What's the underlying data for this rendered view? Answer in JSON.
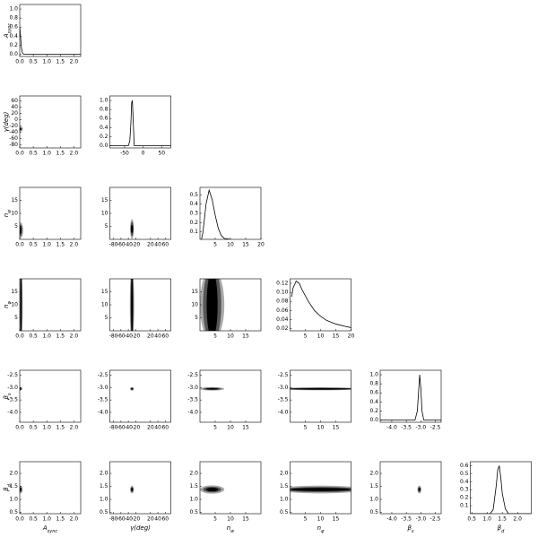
{
  "chart_data": [
    {
      "type": "line",
      "ylabel": {
        "main": "A",
        "sub": "sync"
      },
      "xlim": [
        0,
        2.25
      ],
      "ylim": [
        -0.05,
        1.1
      ],
      "xticks": [
        {
          "value": 0,
          "label": "0.0"
        },
        {
          "value": 0.5,
          "label": "0.5"
        },
        {
          "value": 1,
          "label": "1.0"
        },
        {
          "value": 1.5,
          "label": "1.5"
        },
        {
          "value": 2,
          "label": "2.0"
        }
      ],
      "yticks": [
        {
          "value": 0,
          "label": "0.0"
        },
        0.2,
        0.4,
        0.6,
        0.8,
        {
          "value": 1,
          "label": "1.0"
        }
      ],
      "x": [
        0,
        0.03,
        0.06,
        0.1,
        0.15,
        2.25
      ],
      "values": [
        0.6,
        0.4,
        0.15,
        0.03,
        0,
        0
      ],
      "color": "#000000"
    },
    {
      "type": "contour",
      "ylabel": {
        "main": "γ(deg)"
      },
      "xlim": [
        0,
        2.25
      ],
      "ylim": [
        -90,
        75
      ],
      "xticks": [
        {
          "value": 0,
          "label": "0.0"
        },
        {
          "value": 0.5,
          "label": "0.5"
        },
        {
          "value": 1,
          "label": "1.0"
        },
        {
          "value": 1.5,
          "label": "1.5"
        },
        {
          "value": 2,
          "label": "2.0"
        }
      ],
      "yticks": [
        -80,
        -60,
        -40,
        -20,
        0,
        20,
        40,
        60
      ],
      "colors": [
        "#aaaaaa",
        "#555555",
        "#000000"
      ],
      "regions": [
        {
          "cx": 0.02,
          "cy": -30,
          "rx": 0.1,
          "ry": 8
        },
        {
          "cx": 0.02,
          "cy": -30,
          "rx": 0.06,
          "ry": 5
        },
        {
          "cx": 0.02,
          "cy": -30,
          "rx": 0.03,
          "ry": 3
        }
      ]
    },
    {
      "type": "line",
      "xlim": [
        -90,
        75
      ],
      "ylim": [
        -0.05,
        1.1
      ],
      "xticks": [
        -50,
        0,
        50
      ],
      "yticks": [
        {
          "value": 0,
          "label": "0.0"
        },
        0.2,
        0.4,
        0.6,
        0.8,
        {
          "value": 1,
          "label": "1.0"
        }
      ],
      "x": [
        -90,
        -40,
        -36,
        -33,
        -31,
        -29,
        -27,
        -24,
        75
      ],
      "values": [
        0,
        0,
        0.1,
        0.5,
        0.95,
        1,
        0.6,
        0,
        0
      ],
      "color": "#000000"
    },
    {
      "type": "contour",
      "ylabel": {
        "main": "n",
        "sub": "w"
      },
      "xlim": [
        0,
        2.25
      ],
      "ylim": [
        0,
        20
      ],
      "xticks": [
        {
          "value": 0,
          "label": "0.0"
        },
        {
          "value": 0.5,
          "label": "0.5"
        },
        {
          "value": 1,
          "label": "1.0"
        },
        {
          "value": 1.5,
          "label": "1.5"
        },
        {
          "value": 2,
          "label": "2.0"
        }
      ],
      "yticks": [
        5,
        10,
        15
      ],
      "colors": [
        "#aaaaaa",
        "#555555",
        "#000000"
      ],
      "regions": [
        {
          "cx": 0.03,
          "cy": 3.5,
          "rx": 0.1,
          "ry": 3
        },
        {
          "cx": 0.03,
          "cy": 3.5,
          "rx": 0.06,
          "ry": 2.2
        },
        {
          "cx": 0.03,
          "cy": 3.5,
          "rx": 0.03,
          "ry": 1.4
        }
      ]
    },
    {
      "type": "contour",
      "xlim": [
        -90,
        75
      ],
      "ylim": [
        0,
        20
      ],
      "xticks": [
        -80,
        -60,
        -40,
        -20,
        20,
        40,
        60
      ],
      "yticks": [
        5,
        10,
        15
      ],
      "colors": [
        "#aaaaaa",
        "#555555",
        "#000000"
      ],
      "regions": [
        {
          "cx": -30,
          "cy": 4,
          "rx": 5,
          "ry": 3.8
        },
        {
          "cx": -30,
          "cy": 4,
          "rx": 4,
          "ry": 2.8
        },
        {
          "cx": -30,
          "cy": 4,
          "rx": 3,
          "ry": 1.6
        }
      ]
    },
    {
      "type": "line",
      "xlim": [
        0,
        20
      ],
      "ylim": [
        0.02,
        0.58
      ],
      "xticks": [
        5,
        10,
        15,
        20
      ],
      "yticks": [
        0.1,
        0.2,
        0.3,
        0.4,
        0.5
      ],
      "x": [
        0.5,
        1,
        2,
        3,
        4,
        5,
        6,
        7,
        8,
        10
      ],
      "values": [
        0.02,
        0.1,
        0.4,
        0.55,
        0.45,
        0.28,
        0.14,
        0.06,
        0.03,
        0.02
      ],
      "color": "#000000"
    },
    {
      "type": "contour",
      "ylabel": {
        "main": "n",
        "sub": "φ"
      },
      "xlim": [
        0,
        2.25
      ],
      "ylim": [
        0,
        20
      ],
      "xticks": [
        {
          "value": 0,
          "label": "0.0"
        },
        {
          "value": 0.5,
          "label": "0.5"
        },
        {
          "value": 1,
          "label": "1.0"
        },
        {
          "value": 1.5,
          "label": "1.5"
        },
        {
          "value": 2,
          "label": "2.0"
        }
      ],
      "yticks": [
        5,
        10,
        15
      ],
      "colors": [
        "#aaaaaa",
        "#555555",
        "#000000"
      ],
      "regions": [
        {
          "cx": 0.05,
          "cy": 10,
          "rx": 0.06,
          "ry": 14
        },
        {
          "cx": 0.05,
          "cy": 10,
          "rx": 0.04,
          "ry": 14
        },
        {
          "cx": 0.05,
          "cy": 10,
          "rx": 0.02,
          "ry": 13
        }
      ]
    },
    {
      "type": "contour",
      "xlim": [
        -90,
        75
      ],
      "ylim": [
        0,
        20
      ],
      "xticks": [
        -80,
        -60,
        -40,
        -20,
        20,
        40,
        60
      ],
      "yticks": [
        5,
        10,
        15
      ],
      "colors": [
        "#aaaaaa",
        "#555555",
        "#000000"
      ],
      "regions": [
        {
          "cx": -30,
          "cy": 10,
          "rx": 6,
          "ry": 14
        },
        {
          "cx": -30,
          "cy": 10,
          "rx": 4,
          "ry": 14
        },
        {
          "cx": -30,
          "cy": 10,
          "rx": 2.5,
          "ry": 12
        }
      ]
    },
    {
      "type": "contour",
      "xlim": [
        0,
        20
      ],
      "ylim": [
        0,
        20
      ],
      "xticks": [
        5,
        10,
        15
      ],
      "yticks": [
        5,
        10,
        15
      ],
      "colors": [
        "#aaaaaa",
        "#555555",
        "#000000"
      ],
      "regions": [
        {
          "cx": 4,
          "cy": 10,
          "rx": 4,
          "ry": 14
        },
        {
          "cx": 4,
          "cy": 10,
          "rx": 3,
          "ry": 14
        },
        {
          "cx": 4,
          "cy": 10,
          "rx": 1.8,
          "ry": 13
        }
      ]
    },
    {
      "type": "line",
      "xlim": [
        0,
        20
      ],
      "ylim": [
        0.015,
        0.13
      ],
      "xticks": [
        5,
        10,
        15,
        20
      ],
      "yticks": [
        0.02,
        0.04,
        0.06,
        0.08,
        {
          "value": 0.1,
          "label": "0.10"
        },
        0.12
      ],
      "x": [
        0.5,
        1,
        2,
        3,
        4,
        6,
        8,
        10,
        12,
        15,
        18,
        20
      ],
      "values": [
        0.09,
        0.11,
        0.125,
        0.12,
        0.105,
        0.08,
        0.06,
        0.047,
        0.038,
        0.03,
        0.025,
        0.022
      ],
      "color": "#000000"
    },
    {
      "type": "contour",
      "ylabel": {
        "main": "β",
        "sub": "s"
      },
      "xlim": [
        0,
        2.25
      ],
      "ylim": [
        -4.4,
        -2.3
      ],
      "xticks": [
        {
          "value": 0,
          "label": "0.0"
        },
        {
          "value": 0.5,
          "label": "0.5"
        },
        {
          "value": 1,
          "label": "1.0"
        },
        {
          "value": 1.5,
          "label": "1.5"
        },
        {
          "value": 2,
          "label": "2.0"
        }
      ],
      "yticks": [
        {
          "value": -4,
          "label": "-4.0"
        },
        {
          "value": -3.5,
          "label": "-3.5"
        },
        {
          "value": -3,
          "label": "-3.0"
        },
        {
          "value": -2.5,
          "label": "-2.5"
        }
      ],
      "colors": [
        "#aaaaaa",
        "#555555",
        "#000000"
      ],
      "regions": [
        {
          "cx": 0.02,
          "cy": -3.05,
          "rx": 0.08,
          "ry": 0.07
        },
        {
          "cx": 0.02,
          "cy": -3.05,
          "rx": 0.05,
          "ry": 0.05
        },
        {
          "cx": 0.02,
          "cy": -3.05,
          "rx": 0.03,
          "ry": 0.03
        }
      ]
    },
    {
      "type": "contour",
      "xlim": [
        -90,
        75
      ],
      "ylim": [
        -4.4,
        -2.3
      ],
      "xticks": [
        -80,
        -60,
        -40,
        -20,
        20,
        40,
        60
      ],
      "yticks": [
        {
          "value": -4,
          "label": "-4.0"
        },
        {
          "value": -3.5,
          "label": "-3.5"
        },
        {
          "value": -3,
          "label": "-3.0"
        },
        {
          "value": -2.5,
          "label": "-2.5"
        }
      ],
      "colors": [
        "#aaaaaa",
        "#555555",
        "#000000"
      ],
      "regions": [
        {
          "cx": -30,
          "cy": -3.05,
          "rx": 5,
          "ry": 0.07
        },
        {
          "cx": -30,
          "cy": -3.05,
          "rx": 4,
          "ry": 0.05
        },
        {
          "cx": -30,
          "cy": -3.05,
          "rx": 2.5,
          "ry": 0.03
        }
      ]
    },
    {
      "type": "contour",
      "xlim": [
        0,
        20
      ],
      "ylim": [
        -4.4,
        -2.3
      ],
      "xticks": [
        5,
        10,
        15
      ],
      "yticks": [
        {
          "value": -4,
          "label": "-4.0"
        },
        {
          "value": -3.5,
          "label": "-3.5"
        },
        {
          "value": -3,
          "label": "-3.0"
        },
        {
          "value": -2.5,
          "label": "-2.5"
        }
      ],
      "colors": [
        "#aaaaaa",
        "#555555",
        "#000000"
      ],
      "regions": [
        {
          "cx": 4,
          "cy": -3.05,
          "rx": 4,
          "ry": 0.07
        },
        {
          "cx": 4,
          "cy": -3.05,
          "rx": 3,
          "ry": 0.05
        },
        {
          "cx": 4,
          "cy": -3.05,
          "rx": 2,
          "ry": 0.03
        }
      ]
    },
    {
      "type": "contour",
      "xlim": [
        0,
        20
      ],
      "ylim": [
        -4.4,
        -2.3
      ],
      "xticks": [
        5,
        10,
        15
      ],
      "yticks": [
        {
          "value": -4,
          "label": "-4.0"
        },
        {
          "value": -3.5,
          "label": "-3.5"
        },
        {
          "value": -3,
          "label": "-3.0"
        },
        {
          "value": -2.5,
          "label": "-2.5"
        }
      ],
      "colors": [
        "#aaaaaa",
        "#555555",
        "#000000"
      ],
      "regions": [
        {
          "cx": 10,
          "cy": -3.05,
          "rx": 14,
          "ry": 0.06
        },
        {
          "cx": 10,
          "cy": -3.05,
          "rx": 12,
          "ry": 0.045
        },
        {
          "cx": 10,
          "cy": -3.05,
          "rx": 10,
          "ry": 0.03
        }
      ]
    },
    {
      "type": "line",
      "xlim": [
        -4.4,
        -2.3
      ],
      "ylim": [
        -0.05,
        1.1
      ],
      "xticks": [
        {
          "value": -4,
          "label": "-4.0"
        },
        {
          "value": -3.5,
          "label": "-3.5"
        },
        {
          "value": -3,
          "label": "-3.0"
        },
        {
          "value": -2.5,
          "label": "-2.5"
        }
      ],
      "yticks": [
        {
          "value": 0,
          "label": "0.0"
        },
        0.2,
        0.4,
        0.6,
        0.8,
        {
          "value": 1,
          "label": "1.0"
        }
      ],
      "x": [
        -4.4,
        -3.2,
        -3.12,
        -3.07,
        -3.04,
        -3,
        -2.96,
        -2.9,
        -2.3
      ],
      "values": [
        0,
        0,
        0.2,
        0.7,
        1,
        0.7,
        0.2,
        0,
        0
      ],
      "color": "#000000"
    },
    {
      "type": "contour",
      "xlabel": {
        "main": "A",
        "sub": "sync"
      },
      "ylabel": {
        "main": "β",
        "sub": "d"
      },
      "xlim": [
        0,
        2.25
      ],
      "ylim": [
        0.45,
        2.45
      ],
      "xticks": [
        {
          "value": 0,
          "label": "0.0"
        },
        {
          "value": 0.5,
          "label": "0.5"
        },
        {
          "value": 1,
          "label": "1.0"
        },
        {
          "value": 1.5,
          "label": "1.5"
        },
        {
          "value": 2,
          "label": "2.0"
        }
      ],
      "yticks": [
        0.5,
        {
          "value": 1,
          "label": "1.0"
        },
        1.5,
        {
          "value": 2,
          "label": "2.0"
        }
      ],
      "colors": [
        "#aaaaaa",
        "#555555",
        "#000000"
      ],
      "regions": [
        {
          "cx": 0.03,
          "cy": 1.38,
          "rx": 0.08,
          "ry": 0.15
        },
        {
          "cx": 0.03,
          "cy": 1.38,
          "rx": 0.05,
          "ry": 0.1
        },
        {
          "cx": 0.03,
          "cy": 1.38,
          "rx": 0.03,
          "ry": 0.06
        }
      ]
    },
    {
      "type": "contour",
      "xlabel": {
        "main": "γ(deg)"
      },
      "xlim": [
        -90,
        75
      ],
      "ylim": [
        0.45,
        2.45
      ],
      "xticks": [
        -80,
        -60,
        -40,
        -20,
        20,
        40,
        60
      ],
      "yticks": [
        0.5,
        {
          "value": 1,
          "label": "1.0"
        },
        1.5,
        {
          "value": 2,
          "label": "2.0"
        }
      ],
      "colors": [
        "#aaaaaa",
        "#555555",
        "#000000"
      ],
      "regions": [
        {
          "cx": -30,
          "cy": 1.38,
          "rx": 5,
          "ry": 0.15
        },
        {
          "cx": -30,
          "cy": 1.38,
          "rx": 4,
          "ry": 0.1
        },
        {
          "cx": -30,
          "cy": 1.38,
          "rx": 2.5,
          "ry": 0.06
        }
      ]
    },
    {
      "type": "contour",
      "xlabel": {
        "main": "n",
        "sub": "w"
      },
      "xlim": [
        0,
        20
      ],
      "ylim": [
        0.45,
        2.45
      ],
      "xticks": [
        5,
        10,
        15
      ],
      "yticks": [
        0.5,
        {
          "value": 1,
          "label": "1.0"
        },
        1.5,
        {
          "value": 2,
          "label": "2.0"
        }
      ],
      "colors": [
        "#aaaaaa",
        "#555555",
        "#000000"
      ],
      "regions": [
        {
          "cx": 4,
          "cy": 1.38,
          "rx": 4,
          "ry": 0.16
        },
        {
          "cx": 4,
          "cy": 1.38,
          "rx": 3,
          "ry": 0.11
        },
        {
          "cx": 4,
          "cy": 1.38,
          "rx": 2,
          "ry": 0.07
        }
      ]
    },
    {
      "type": "contour",
      "xlabel": {
        "main": "n",
        "sub": "φ"
      },
      "xlim": [
        0,
        20
      ],
      "ylim": [
        0.45,
        2.45
      ],
      "xticks": [
        5,
        10,
        15
      ],
      "yticks": [
        0.5,
        {
          "value": 1,
          "label": "1.0"
        },
        1.5,
        {
          "value": 2,
          "label": "2.0"
        }
      ],
      "colors": [
        "#aaaaaa",
        "#555555",
        "#000000"
      ],
      "regions": [
        {
          "cx": 10,
          "cy": 1.38,
          "rx": 14,
          "ry": 0.15
        },
        {
          "cx": 10,
          "cy": 1.38,
          "rx": 12,
          "ry": 0.1
        },
        {
          "cx": 10,
          "cy": 1.38,
          "rx": 10,
          "ry": 0.06
        }
      ]
    },
    {
      "type": "contour",
      "xlabel": {
        "main": "β",
        "sub": "s"
      },
      "xlim": [
        -4.4,
        -2.3
      ],
      "ylim": [
        0.45,
        2.45
      ],
      "xticks": [
        {
          "value": -4,
          "label": "-4.0"
        },
        {
          "value": -3.5,
          "label": "-3.5"
        },
        {
          "value": -3,
          "label": "-3.0"
        },
        {
          "value": -2.5,
          "label": "-2.5"
        }
      ],
      "yticks": [
        0.5,
        {
          "value": 1,
          "label": "1.0"
        },
        1.5,
        {
          "value": 2,
          "label": "2.0"
        }
      ],
      "colors": [
        "#aaaaaa",
        "#555555",
        "#000000"
      ],
      "regions": [
        {
          "cx": -3.05,
          "cy": 1.38,
          "rx": 0.07,
          "ry": 0.15
        },
        {
          "cx": -3.05,
          "cy": 1.38,
          "rx": 0.05,
          "ry": 0.1
        },
        {
          "cx": -3.05,
          "cy": 1.38,
          "rx": 0.03,
          "ry": 0.06
        }
      ]
    },
    {
      "type": "line",
      "xlabel": {
        "main": "β",
        "sub": "d"
      },
      "xlim": [
        0.45,
        2.45
      ],
      "ylim": [
        0,
        0.65
      ],
      "xticks": [
        0.5,
        {
          "value": 1,
          "label": "1.0"
        },
        1.5,
        {
          "value": 2,
          "label": "2.0"
        }
      ],
      "yticks": [
        0.1,
        0.2,
        0.3,
        0.4,
        0.5,
        0.6
      ],
      "x": [
        0.45,
        1.1,
        1.2,
        1.3,
        1.35,
        1.4,
        1.45,
        1.5,
        1.6,
        1.7,
        2.45
      ],
      "values": [
        0,
        0,
        0.05,
        0.35,
        0.55,
        0.6,
        0.45,
        0.25,
        0.06,
        0,
        0
      ],
      "color": "#000000"
    }
  ]
}
